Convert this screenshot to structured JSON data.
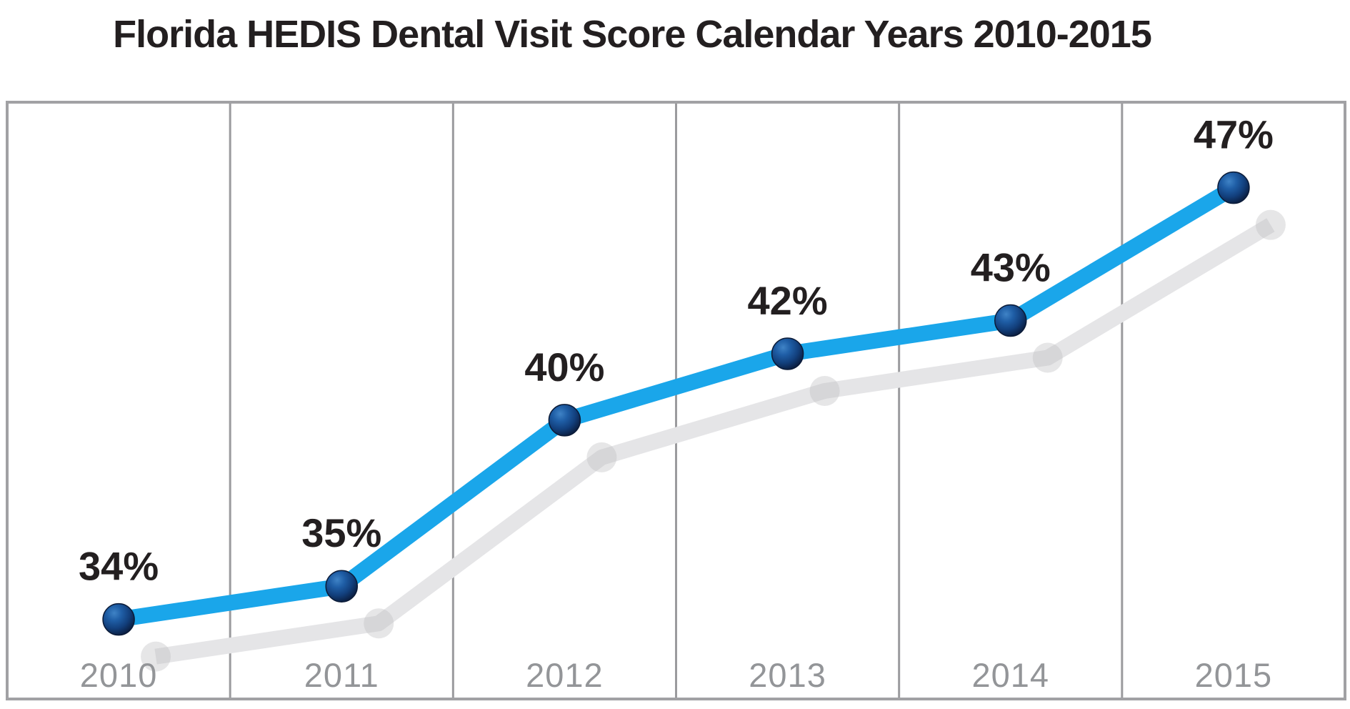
{
  "title": "Florida HEDIS Dental Visit Score Calendar Years 2010-2015",
  "chart_data": {
    "type": "line",
    "title": "Florida HEDIS Dental Visit Score Calendar Years 2010-2015",
    "categories": [
      "2010",
      "2011",
      "2012",
      "2013",
      "2014",
      "2015"
    ],
    "series": [
      {
        "name": "Florida HEDIS Dental Visit Score",
        "values": [
          34,
          35,
          40,
          42,
          43,
          47
        ]
      }
    ],
    "data_labels": [
      "34%",
      "35%",
      "40%",
      "42%",
      "43%",
      "47%"
    ],
    "xlabel": "",
    "ylabel": "",
    "ylim": [
      32,
      50
    ],
    "grid": "vertical-only",
    "legend": "none",
    "marker_style": "3d-sphere",
    "effects": "gray drop-shadow copy of series offset down-right",
    "colors": {
      "accent": "#1aa6ea",
      "marker": "#16457f",
      "marker_rim": "#0b1b38",
      "shadow_line": "#e5e5e7",
      "shadow_marker": "#bcbcc1",
      "grid": "#9b9b9e",
      "border": "#a1a1a4",
      "data_label": "#231f20",
      "axis_label": "#939598",
      "title": "#231f20",
      "background": "#ffffff"
    }
  }
}
